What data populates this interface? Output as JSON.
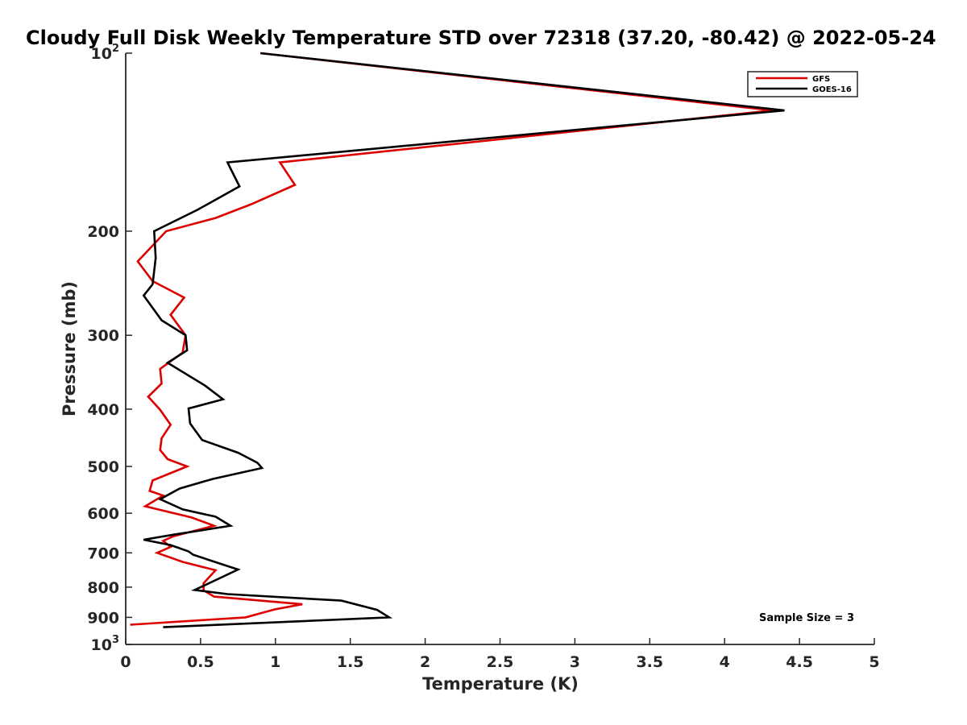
{
  "chart_data": {
    "type": "line",
    "title": "Cloudy Full Disk Weekly Temperature STD over 72318 (37.20, -80.42) @ 2022-05-24",
    "xlabel": "Temperature (K)",
    "ylabel": "Pressure (mb)",
    "xlim": [
      0,
      5
    ],
    "ylim": [
      100,
      1000
    ],
    "yscale": "log",
    "yaxis_direction": "reversed",
    "x_ticks": [
      0,
      0.5,
      1,
      1.5,
      2,
      2.5,
      3,
      3.5,
      4,
      4.5,
      5
    ],
    "x_tick_labels": [
      "0",
      "0.5",
      "1",
      "1.5",
      "2",
      "2.5",
      "3",
      "3.5",
      "4",
      "4.5",
      "5"
    ],
    "y_ticks": [
      100,
      200,
      300,
      400,
      500,
      600,
      700,
      800,
      900,
      1000
    ],
    "y_tick_labels": [
      {
        "base": "10",
        "exp": "2"
      },
      {
        "base": "200",
        "exp": ""
      },
      {
        "base": "300",
        "exp": ""
      },
      {
        "base": "400",
        "exp": ""
      },
      {
        "base": "500",
        "exp": ""
      },
      {
        "base": "600",
        "exp": ""
      },
      {
        "base": "700",
        "exp": ""
      },
      {
        "base": "800",
        "exp": ""
      },
      {
        "base": "900",
        "exp": ""
      },
      {
        "base": "10",
        "exp": "3"
      }
    ],
    "legend_position": "top-right",
    "annotation": "Sample Size = 3",
    "series": [
      {
        "name": "GFS",
        "color": "#dd0000",
        "points": [
          [
            0.9,
            100
          ],
          [
            4.32,
            125
          ],
          [
            1.03,
            153
          ],
          [
            1.13,
            167
          ],
          [
            0.84,
            180
          ],
          [
            0.6,
            190
          ],
          [
            0.27,
            200
          ],
          [
            0.08,
            225
          ],
          [
            0.18,
            243
          ],
          [
            0.39,
            259
          ],
          [
            0.3,
            277
          ],
          [
            0.4,
            300
          ],
          [
            0.38,
            321
          ],
          [
            0.23,
            342
          ],
          [
            0.24,
            362
          ],
          [
            0.15,
            381
          ],
          [
            0.23,
            401
          ],
          [
            0.3,
            425
          ],
          [
            0.24,
            448
          ],
          [
            0.23,
            469
          ],
          [
            0.28,
            486
          ],
          [
            0.41,
            500
          ],
          [
            0.18,
            528
          ],
          [
            0.16,
            550
          ],
          [
            0.25,
            560
          ],
          [
            0.13,
            584
          ],
          [
            0.44,
            610
          ],
          [
            0.59,
            630
          ],
          [
            0.32,
            656
          ],
          [
            0.25,
            668
          ],
          [
            0.3,
            684
          ],
          [
            0.21,
            700
          ],
          [
            0.38,
            725
          ],
          [
            0.6,
            749
          ],
          [
            0.52,
            788
          ],
          [
            0.52,
            810
          ],
          [
            0.59,
            830
          ],
          [
            1.18,
            855
          ],
          [
            1.0,
            872
          ],
          [
            0.8,
            900
          ],
          [
            0.03,
            926
          ]
        ]
      },
      {
        "name": "GOES-16",
        "color": "#000000",
        "points": [
          [
            0.9,
            100
          ],
          [
            4.4,
            125
          ],
          [
            0.68,
            153
          ],
          [
            0.76,
            168
          ],
          [
            0.48,
            184
          ],
          [
            0.19,
            200
          ],
          [
            0.2,
            222
          ],
          [
            0.18,
            246
          ],
          [
            0.12,
            257
          ],
          [
            0.24,
            283
          ],
          [
            0.4,
            300
          ],
          [
            0.41,
            318
          ],
          [
            0.28,
            334
          ],
          [
            0.53,
            365
          ],
          [
            0.65,
            385
          ],
          [
            0.42,
            399
          ],
          [
            0.43,
            423
          ],
          [
            0.51,
            451
          ],
          [
            0.75,
            474
          ],
          [
            0.88,
            493
          ],
          [
            0.91,
            503
          ],
          [
            0.58,
            525
          ],
          [
            0.36,
            545
          ],
          [
            0.23,
            568
          ],
          [
            0.38,
            591
          ],
          [
            0.6,
            608
          ],
          [
            0.7,
            630
          ],
          [
            0.32,
            652
          ],
          [
            0.12,
            665
          ],
          [
            0.3,
            679
          ],
          [
            0.42,
            696
          ],
          [
            0.45,
            705
          ],
          [
            0.75,
            747
          ],
          [
            0.46,
            809
          ],
          [
            0.68,
            822
          ],
          [
            1.44,
            843
          ],
          [
            1.68,
            874
          ],
          [
            1.76,
            900
          ],
          [
            0.25,
            935
          ]
        ]
      }
    ]
  }
}
